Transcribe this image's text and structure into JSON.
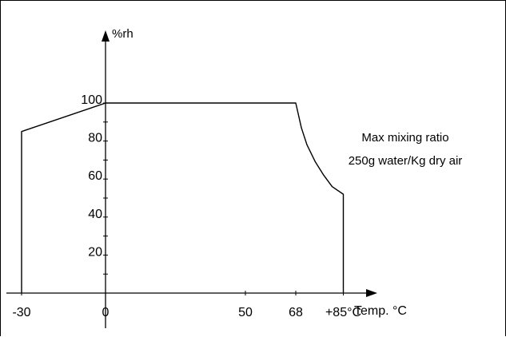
{
  "chart_data": {
    "type": "area",
    "xlabel": "Temp. °C",
    "ylabel": "%rh",
    "x_ticks": [
      {
        "value": -30,
        "label": "-30"
      },
      {
        "value": 0,
        "label": "0"
      },
      {
        "value": 50,
        "label": "50"
      },
      {
        "value": 68,
        "label": "68"
      },
      {
        "value": 85,
        "label": "+85°C"
      }
    ],
    "y_ticks": [
      {
        "value": 20,
        "label": "20"
      },
      {
        "value": 40,
        "label": "40"
      },
      {
        "value": 60,
        "label": "60"
      },
      {
        "value": 80,
        "label": "80"
      },
      {
        "value": 100,
        "label": "100"
      }
    ],
    "xlim": [
      -30,
      85
    ],
    "ylim": [
      0,
      100
    ],
    "series": [
      {
        "x": [
          -30,
          -30,
          0,
          68,
          70,
          72,
          75,
          78,
          81,
          85,
          85
        ],
        "y": [
          0,
          85,
          100,
          100,
          87,
          78,
          69,
          62,
          56,
          52,
          0
        ]
      }
    ],
    "annotations": [
      "Max mixing ratio",
      "250g water/Kg dry air"
    ]
  }
}
